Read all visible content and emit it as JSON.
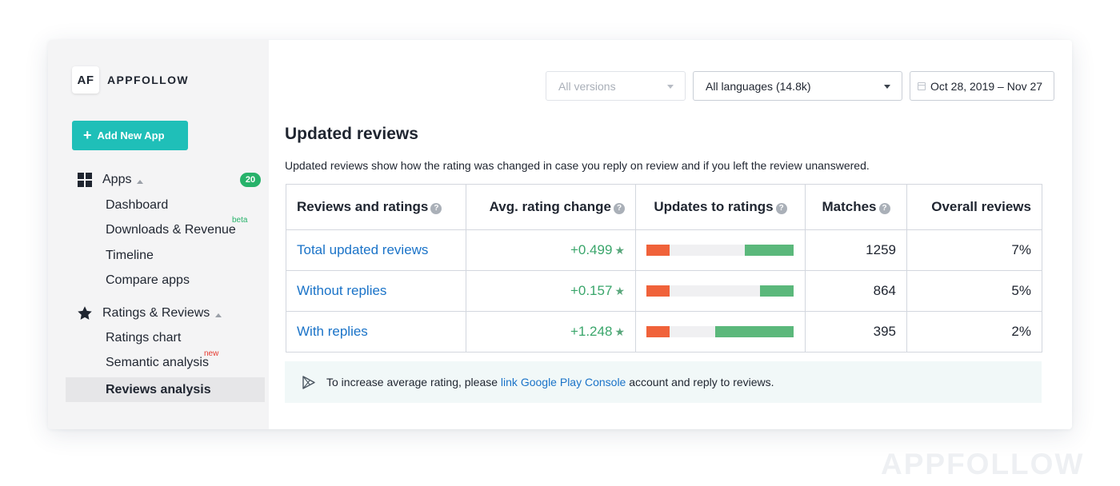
{
  "brand": {
    "mark": "AF",
    "name": "APPFOLLOW"
  },
  "sidebar": {
    "add_button": "Add New App",
    "apps_group": {
      "label": "Apps",
      "count": "20"
    },
    "apps_items": [
      "Dashboard",
      "Downloads & Revenue",
      "Timeline",
      "Compare apps"
    ],
    "beta_tag": "beta",
    "ratings_group": {
      "label": "Ratings & Reviews"
    },
    "ratings_items": [
      "Ratings chart",
      "Semantic analysis",
      "Reviews analysis"
    ],
    "new_tag": "new",
    "active_item": "Reviews analysis"
  },
  "filters": {
    "versions": "All versions",
    "languages": "All languages (14.8k)",
    "date_range": "Oct 28, 2019 – Nov 27"
  },
  "page": {
    "title": "Updated reviews",
    "description": "Updated reviews show how the rating was changed in case you reply on review and if you left the review unanswered."
  },
  "table": {
    "headers": [
      "Reviews and ratings",
      "Avg. rating change",
      "Updates to ratings",
      "Matches",
      "Overall reviews"
    ],
    "rows": [
      {
        "label": "Total updated reviews",
        "change": "+0.499",
        "red": 0.16,
        "green": 0.33,
        "matches": "1259",
        "overall": "7%"
      },
      {
        "label": "Without replies",
        "change": "+0.157",
        "red": 0.16,
        "green": 0.23,
        "matches": "864",
        "overall": "5%"
      },
      {
        "label": "With replies",
        "change": "+1.248",
        "red": 0.16,
        "green": 0.53,
        "matches": "395",
        "overall": "2%"
      }
    ]
  },
  "notice": {
    "before": "To increase average rating, please ",
    "link": "link Google Play Console",
    "after": " account and reply to reviews."
  },
  "watermark": "APPFOLLOW",
  "colors": {
    "accent": "#1fbfb8",
    "badge": "#27b26a",
    "link": "#1a73c8",
    "positive": "#3aa66b",
    "bar_red": "#f0623a",
    "bar_green": "#5bb87b"
  }
}
